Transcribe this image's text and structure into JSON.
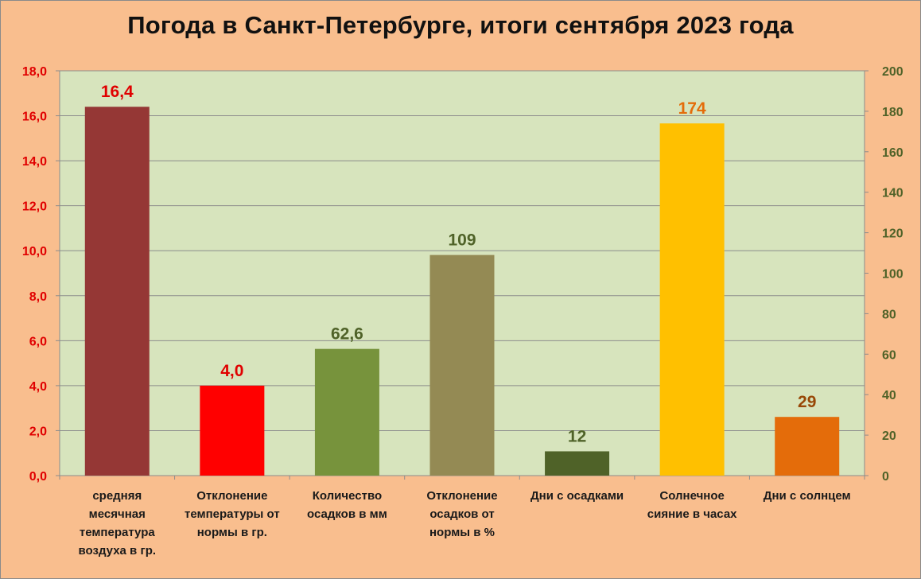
{
  "chart_data": {
    "type": "bar",
    "title": "Погода в Санкт-Петербурге, итоги сентября 2023 года",
    "categories": [
      "средняя месячная температура воздуха в гр.",
      "Отклонение температуры от нормы в гр.",
      "Количество осадков в мм",
      "Отклонение осадков от нормы в %",
      "Дни с осадками",
      "Солнечное сияние в часах",
      "Дни с солнцем"
    ],
    "category_lines": [
      [
        "средняя",
        "месячная",
        "температура",
        "воздуха в гр."
      ],
      [
        "Отклонение",
        "температуры от",
        "нормы в гр."
      ],
      [
        "Количество",
        "осадков в мм"
      ],
      [
        "Отклонение",
        "осадков от",
        "нормы в %"
      ],
      [
        "Дни с осадками"
      ],
      [
        "Солнечное",
        "сияние в часах"
      ],
      [
        "Дни с солнцем"
      ]
    ],
    "values": [
      16.4,
      4.0,
      62.6,
      109,
      12,
      174,
      29
    ],
    "value_labels": [
      "16,4",
      "4,0",
      "62,6",
      "109",
      "12",
      "174",
      "29"
    ],
    "axis": [
      "left",
      "left",
      "right",
      "right",
      "right",
      "right",
      "right"
    ],
    "colors": [
      "#953735",
      "#ff0000",
      "#77933c",
      "#948a54",
      "#4f6228",
      "#ffc000",
      "#e46c0a"
    ],
    "label_colors": [
      "#e00000",
      "#e00000",
      "#4f6228",
      "#4f6228",
      "#4f6228",
      "#e46c0a",
      "#984807"
    ],
    "ylim_left": [
      0,
      18
    ],
    "yticks_left": [
      "0,0",
      "2,0",
      "4,0",
      "6,0",
      "8,0",
      "10,0",
      "12,0",
      "14,0",
      "16,0",
      "18,0"
    ],
    "ylim_right": [
      0,
      200
    ],
    "yticks_right": [
      "0",
      "20",
      "40",
      "60",
      "80",
      "100",
      "120",
      "140",
      "160",
      "180",
      "200"
    ],
    "grid": true,
    "plot_background": "#d7e4bd",
    "page_background": "#f9be8e",
    "left_axis_color": "#e00000",
    "right_axis_color": "#4f6228"
  }
}
